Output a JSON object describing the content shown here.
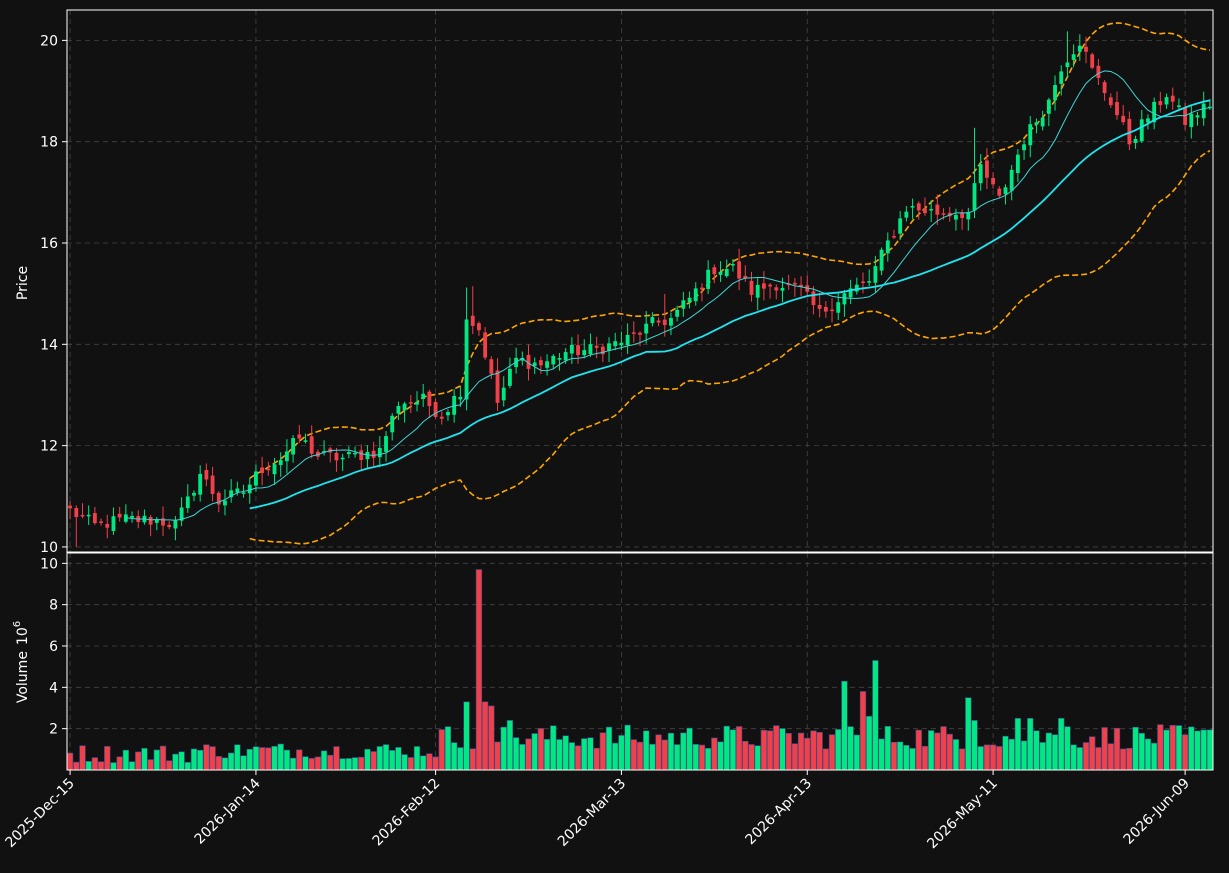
{
  "theme": {
    "background": "#111111",
    "axes_edge": "#ffffff",
    "grid": "#444444",
    "up_color": "#00e882",
    "down_color": "#f0404a",
    "ma_slow_color": "#1fe5f0",
    "ma_fast_color": "#3fd6d6",
    "band_color": "#ffa500"
  },
  "chart_data": {
    "type": "candlestick",
    "x_tick_labels": [
      "2025-Dec-15",
      "2026-Jan-14",
      "2026-Feb-12",
      "2026-Mar-13",
      "2026-Apr-13",
      "2026-May-11",
      "2026-Jun-09"
    ],
    "x_tick_positions": [
      0,
      30,
      59,
      89,
      119,
      149,
      180
    ],
    "x_range": [
      -0.5,
      184.5
    ],
    "price_panel": {
      "ylabel": "Price",
      "yticks": [
        10,
        12,
        14,
        16,
        18,
        20
      ],
      "ylim": [
        9.9,
        20.6
      ],
      "grid": true
    },
    "volume_panel": {
      "ylabel": "Volume",
      "ylabel_exponent": "10",
      "ylabel_exponent_power": "6",
      "yticks": [
        2,
        4,
        6,
        8,
        10
      ],
      "ylim": [
        0,
        10.5
      ],
      "grid": true
    },
    "anchors": [
      [
        0,
        10.72
      ],
      [
        4,
        10.42
      ],
      [
        9,
        10.55
      ],
      [
        14,
        10.52
      ],
      [
        17,
        10.45
      ],
      [
        19,
        10.9
      ],
      [
        21,
        11.45
      ],
      [
        24,
        10.9
      ],
      [
        28,
        11.1
      ],
      [
        31,
        11.55
      ],
      [
        34,
        11.75
      ],
      [
        37,
        12.15
      ],
      [
        40,
        11.8
      ],
      [
        44,
        11.75
      ],
      [
        48,
        11.85
      ],
      [
        50,
        11.9
      ],
      [
        53,
        12.85
      ],
      [
        57,
        12.9
      ],
      [
        60,
        12.6
      ],
      [
        63,
        13.1
      ],
      [
        64,
        14.55
      ],
      [
        66,
        14.3
      ],
      [
        69,
        12.85
      ],
      [
        72,
        13.7
      ],
      [
        76,
        13.6
      ],
      [
        80,
        13.85
      ],
      [
        85,
        13.9
      ],
      [
        90,
        14.1
      ],
      [
        94,
        14.4
      ],
      [
        97,
        14.5
      ],
      [
        100,
        14.9
      ],
      [
        104,
        15.5
      ],
      [
        107,
        15.5
      ],
      [
        110,
        15.05
      ],
      [
        114,
        15.2
      ],
      [
        118,
        15.05
      ],
      [
        121,
        14.6
      ],
      [
        125,
        15.0
      ],
      [
        129,
        15.25
      ],
      [
        132,
        16.0
      ],
      [
        135,
        16.7
      ],
      [
        140,
        16.6
      ],
      [
        145,
        16.6
      ],
      [
        147,
        17.5
      ],
      [
        150,
        16.85
      ],
      [
        154,
        18.05
      ],
      [
        158,
        18.8
      ],
      [
        160,
        19.5
      ],
      [
        163,
        20.0
      ],
      [
        165,
        19.4
      ],
      [
        168,
        18.8
      ],
      [
        171,
        18.0
      ],
      [
        174,
        18.5
      ],
      [
        177,
        18.95
      ],
      [
        180,
        18.4
      ],
      [
        184,
        18.75
      ]
    ],
    "big_volume_days": [
      [
        64,
        3.3
      ],
      [
        66,
        9.7
      ],
      [
        67,
        3.3
      ],
      [
        68,
        3.1
      ],
      [
        71,
        2.4
      ],
      [
        113,
        1.9
      ],
      [
        125,
        4.3
      ],
      [
        126,
        2.1
      ],
      [
        128,
        3.8
      ],
      [
        129,
        2.6
      ],
      [
        130,
        5.3
      ],
      [
        145,
        3.5
      ],
      [
        146,
        2.4
      ],
      [
        153,
        2.5
      ],
      [
        155,
        2.5
      ],
      [
        160,
        2.5
      ],
      [
        161,
        2.1
      ]
    ],
    "moving_average_windows": [
      10,
      30
    ],
    "bollinger": {
      "window": 30,
      "std_mult": 2
    }
  }
}
